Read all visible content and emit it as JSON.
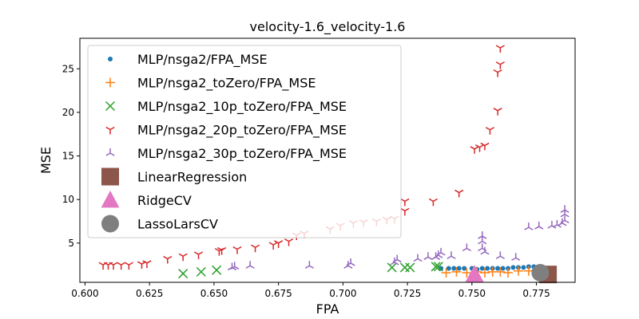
{
  "chart_data": {
    "type": "scatter",
    "title": "velocity-1.6_velocity-1.6",
    "xlabel": "FPA",
    "ylabel": "MSE",
    "xlim": [
      0.598,
      0.79
    ],
    "ylim": [
      0.5,
      28.5
    ],
    "xticks": [
      0.6,
      0.625,
      0.65,
      0.675,
      0.7,
      0.725,
      0.75,
      0.775
    ],
    "xtick_labels": [
      "0.600",
      "0.625",
      "0.650",
      "0.675",
      "0.700",
      "0.725",
      "0.750",
      "0.775"
    ],
    "yticks": [
      5,
      10,
      15,
      20,
      25
    ],
    "ytick_labels": [
      "5",
      "10",
      "15",
      "20",
      "25"
    ],
    "grid": false,
    "legend_position": "upper-left",
    "series": [
      {
        "name": "MLP/nsga2/FPA_MSE",
        "marker": "dot",
        "color": "#1f77b4",
        "points": [
          [
            0.738,
            2.1
          ],
          [
            0.741,
            2.1
          ],
          [
            0.743,
            2.1
          ],
          [
            0.745,
            2.1
          ],
          [
            0.747,
            2.1
          ],
          [
            0.75,
            2.1
          ],
          [
            0.752,
            2.0
          ],
          [
            0.754,
            2.1
          ],
          [
            0.756,
            2.1
          ],
          [
            0.758,
            2.1
          ],
          [
            0.76,
            2.1
          ],
          [
            0.762,
            2.1
          ],
          [
            0.764,
            2.1
          ],
          [
            0.766,
            2.2
          ],
          [
            0.768,
            2.2
          ],
          [
            0.77,
            2.2
          ],
          [
            0.772,
            2.3
          ],
          [
            0.774,
            2.3
          ],
          [
            0.776,
            2.3
          ]
        ]
      },
      {
        "name": "MLP/nsga2_toZero/FPA_MSE",
        "marker": "plus",
        "color": "#ff7f0e",
        "points": [
          [
            0.74,
            1.6
          ],
          [
            0.744,
            1.7
          ],
          [
            0.748,
            1.6
          ],
          [
            0.752,
            1.7
          ],
          [
            0.755,
            1.6
          ],
          [
            0.758,
            1.7
          ],
          [
            0.761,
            1.7
          ],
          [
            0.764,
            1.6
          ],
          [
            0.768,
            1.8
          ],
          [
            0.772,
            1.8
          ],
          [
            0.775,
            1.9
          ],
          [
            0.777,
            2.0
          ]
        ]
      },
      {
        "name": "MLP/nsga2_10p_toZero/FPA_MSE",
        "marker": "x",
        "color": "#2ca02c",
        "points": [
          [
            0.638,
            1.5
          ],
          [
            0.645,
            1.7
          ],
          [
            0.651,
            1.9
          ],
          [
            0.719,
            2.2
          ],
          [
            0.724,
            2.2
          ],
          [
            0.726,
            2.2
          ],
          [
            0.736,
            2.3
          ],
          [
            0.737,
            2.3
          ]
        ]
      },
      {
        "name": "MLP/nsga2_20p_toZero/FPA_MSE",
        "marker": "tri_down",
        "color": "#d62728",
        "points": [
          [
            0.607,
            2.5
          ],
          [
            0.609,
            2.5
          ],
          [
            0.611,
            2.5
          ],
          [
            0.614,
            2.5
          ],
          [
            0.617,
            2.5
          ],
          [
            0.622,
            2.6
          ],
          [
            0.624,
            2.7
          ],
          [
            0.632,
            3.2
          ],
          [
            0.638,
            3.5
          ],
          [
            0.644,
            3.7
          ],
          [
            0.652,
            4.1
          ],
          [
            0.653,
            4.2
          ],
          [
            0.659,
            4.3
          ],
          [
            0.666,
            4.5
          ],
          [
            0.673,
            4.8
          ],
          [
            0.675,
            5.0
          ],
          [
            0.679,
            5.2
          ],
          [
            0.682,
            5.9
          ],
          [
            0.685,
            6.1
          ],
          [
            0.695,
            6.6
          ],
          [
            0.699,
            7.0
          ],
          [
            0.704,
            7.3
          ],
          [
            0.708,
            7.4
          ],
          [
            0.713,
            7.5
          ],
          [
            0.717,
            7.7
          ],
          [
            0.72,
            7.8
          ],
          [
            0.724,
            8.7
          ],
          [
            0.724,
            9.8
          ],
          [
            0.735,
            9.8
          ],
          [
            0.745,
            10.8
          ],
          [
            0.751,
            15.8
          ],
          [
            0.753,
            16.0
          ],
          [
            0.755,
            16.2
          ],
          [
            0.757,
            18.0
          ],
          [
            0.76,
            20.2
          ],
          [
            0.76,
            24.6
          ],
          [
            0.761,
            25.5
          ],
          [
            0.761,
            27.4
          ]
        ]
      },
      {
        "name": "MLP/nsga2_30p_toZero/FPA_MSE",
        "marker": "tri_up",
        "color": "#9467bd",
        "points": [
          [
            0.657,
            2.2
          ],
          [
            0.658,
            2.3
          ],
          [
            0.664,
            2.4
          ],
          [
            0.687,
            2.4
          ],
          [
            0.702,
            2.4
          ],
          [
            0.703,
            2.7
          ],
          [
            0.72,
            2.8
          ],
          [
            0.721,
            3.1
          ],
          [
            0.729,
            3.2
          ],
          [
            0.733,
            3.4
          ],
          [
            0.736,
            3.4
          ],
          [
            0.737,
            3.6
          ],
          [
            0.738,
            3.9
          ],
          [
            0.742,
            3.5
          ],
          [
            0.748,
            4.4
          ],
          [
            0.754,
            4.4
          ],
          [
            0.754,
            5.2
          ],
          [
            0.754,
            5.8
          ],
          [
            0.755,
            4.0
          ],
          [
            0.761,
            3.5
          ],
          [
            0.767,
            3.3
          ],
          [
            0.772,
            6.8
          ],
          [
            0.776,
            6.9
          ],
          [
            0.781,
            7.0
          ],
          [
            0.783,
            7.1
          ],
          [
            0.785,
            7.3
          ],
          [
            0.786,
            7.6
          ],
          [
            0.786,
            8.3
          ],
          [
            0.786,
            8.8
          ]
        ]
      },
      {
        "name": "LinearRegression",
        "marker": "square",
        "color": "#8c564b",
        "points": [
          [
            0.7795,
            1.4
          ]
        ]
      },
      {
        "name": "RidgeCV",
        "marker": "triangle",
        "color": "#e377c2",
        "points": [
          [
            0.751,
            1.4
          ]
        ]
      },
      {
        "name": "LassoLarsCV",
        "marker": "circle",
        "color": "#7f7f7f",
        "points": [
          [
            0.7765,
            1.6
          ]
        ]
      }
    ]
  }
}
